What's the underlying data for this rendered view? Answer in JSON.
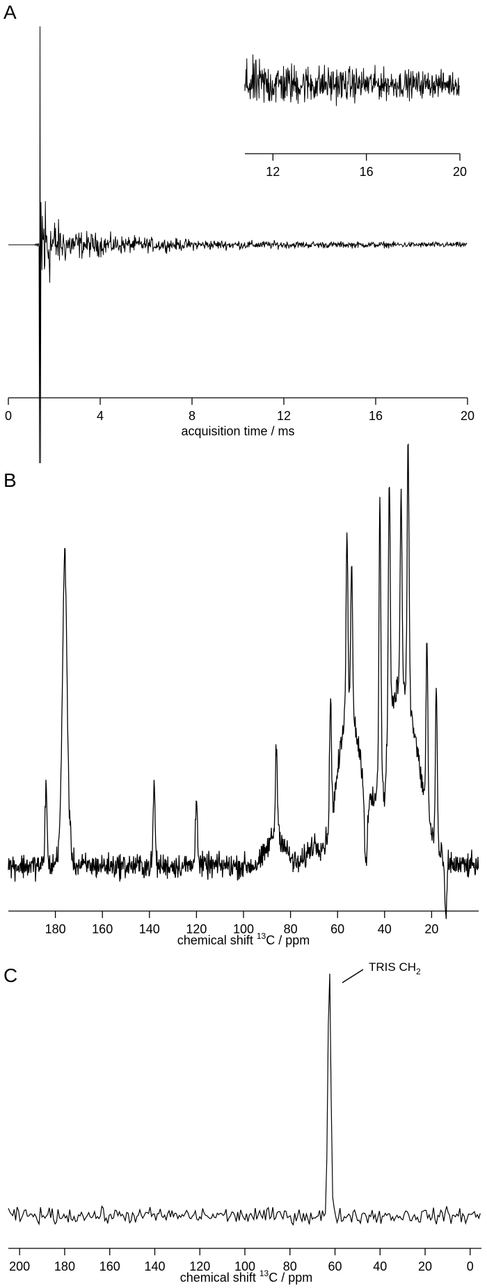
{
  "chart_data": [
    {
      "panel": "A",
      "type": "line",
      "xlabel": "acquisition time / ms",
      "xlim": [
        0,
        20
      ],
      "xticks": [
        0,
        4,
        8,
        12,
        16,
        20
      ],
      "signal": "FID",
      "onset_ms": 1.35,
      "peak_amplitude": 1.0,
      "inset": {
        "xlim": [
          10.8,
          20
        ],
        "xticks": [
          12,
          16,
          20
        ]
      }
    },
    {
      "panel": "B",
      "type": "line",
      "xlabel_prefix": "chemical shift ",
      "xlabel_sup": "13",
      "xlabel_suffix": "C / ppm",
      "xlim": [
        200,
        0
      ],
      "xticks": [
        180,
        160,
        140,
        120,
        100,
        80,
        60,
        40,
        20
      ],
      "peaks_ppm": [
        {
          "x": 176,
          "height": 0.78
        },
        {
          "x": 184,
          "height": 0.28
        },
        {
          "x": 138,
          "height": 0.28
        },
        {
          "x": 120,
          "height": 0.26
        },
        {
          "x": 86,
          "height": 0.3
        },
        {
          "x": 63,
          "height": 0.42
        },
        {
          "x": 56,
          "height": 0.66
        },
        {
          "x": 54,
          "height": 0.55
        },
        {
          "x": 42,
          "height": 1.0
        },
        {
          "x": 38,
          "height": 0.85
        },
        {
          "x": 33,
          "height": 0.68
        },
        {
          "x": 30,
          "height": 0.93
        },
        {
          "x": 22,
          "height": 0.6
        },
        {
          "x": 18,
          "height": 0.56
        }
      ]
    },
    {
      "panel": "C",
      "type": "line",
      "xlabel_prefix": "chemical shift ",
      "xlabel_sup": "13",
      "xlabel_suffix": "C / ppm",
      "xlim": [
        205,
        -5
      ],
      "xticks": [
        200,
        180,
        160,
        140,
        120,
        100,
        80,
        60,
        40,
        20,
        0
      ],
      "peak_ppm": 62.5,
      "peak_height": 1.0,
      "annotation_main": "TRIS CH",
      "annotation_sub": "2"
    }
  ]
}
